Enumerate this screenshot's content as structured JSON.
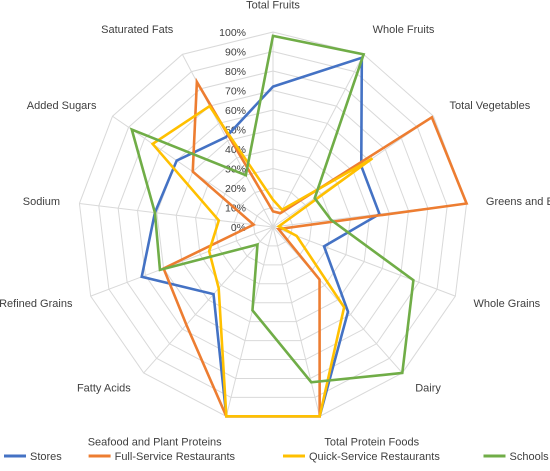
{
  "chart_data": {
    "type": "radar",
    "categories": [
      "Total Fruits",
      "Whole Fruits",
      "Total Vegetables",
      "Greens and Beans",
      "Whole Grains",
      "Dairy",
      "Total Protein Foods",
      "Seafood and Plant Proteins",
      "Fatty Acids",
      "Refined Grains",
      "Sodium",
      "Added Sugars",
      "Saturated Fats"
    ],
    "ticks": [
      "0%",
      "10%",
      "20%",
      "30%",
      "40%",
      "50%",
      "60%",
      "70%",
      "80%",
      "90%",
      "100%"
    ],
    "rlim": [
      0,
      100
    ],
    "grid": true,
    "legend_position": "bottom",
    "series": [
      {
        "name": "Stores",
        "color": "#4472C4",
        "values": [
          72,
          98,
          55,
          55,
          28,
          58,
          100,
          100,
          46,
          72,
          61,
          60,
          52
        ]
      },
      {
        "name": "Full-Service Restaurants",
        "color": "#ED7D31",
        "values": [
          8,
          8,
          99,
          100,
          3,
          36,
          100,
          100,
          67,
          60,
          10,
          50,
          84
        ]
      },
      {
        "name": "Quick-Service Restaurants",
        "color": "#FFC000",
        "values": [
          14,
          10,
          62,
          3,
          13,
          55,
          100,
          100,
          42,
          35,
          28,
          75,
          70
        ]
      },
      {
        "name": "Schools",
        "color": "#70AD47",
        "values": [
          98,
          100,
          26,
          30,
          77,
          100,
          82,
          44,
          12,
          62,
          61,
          88,
          30
        ]
      }
    ]
  }
}
